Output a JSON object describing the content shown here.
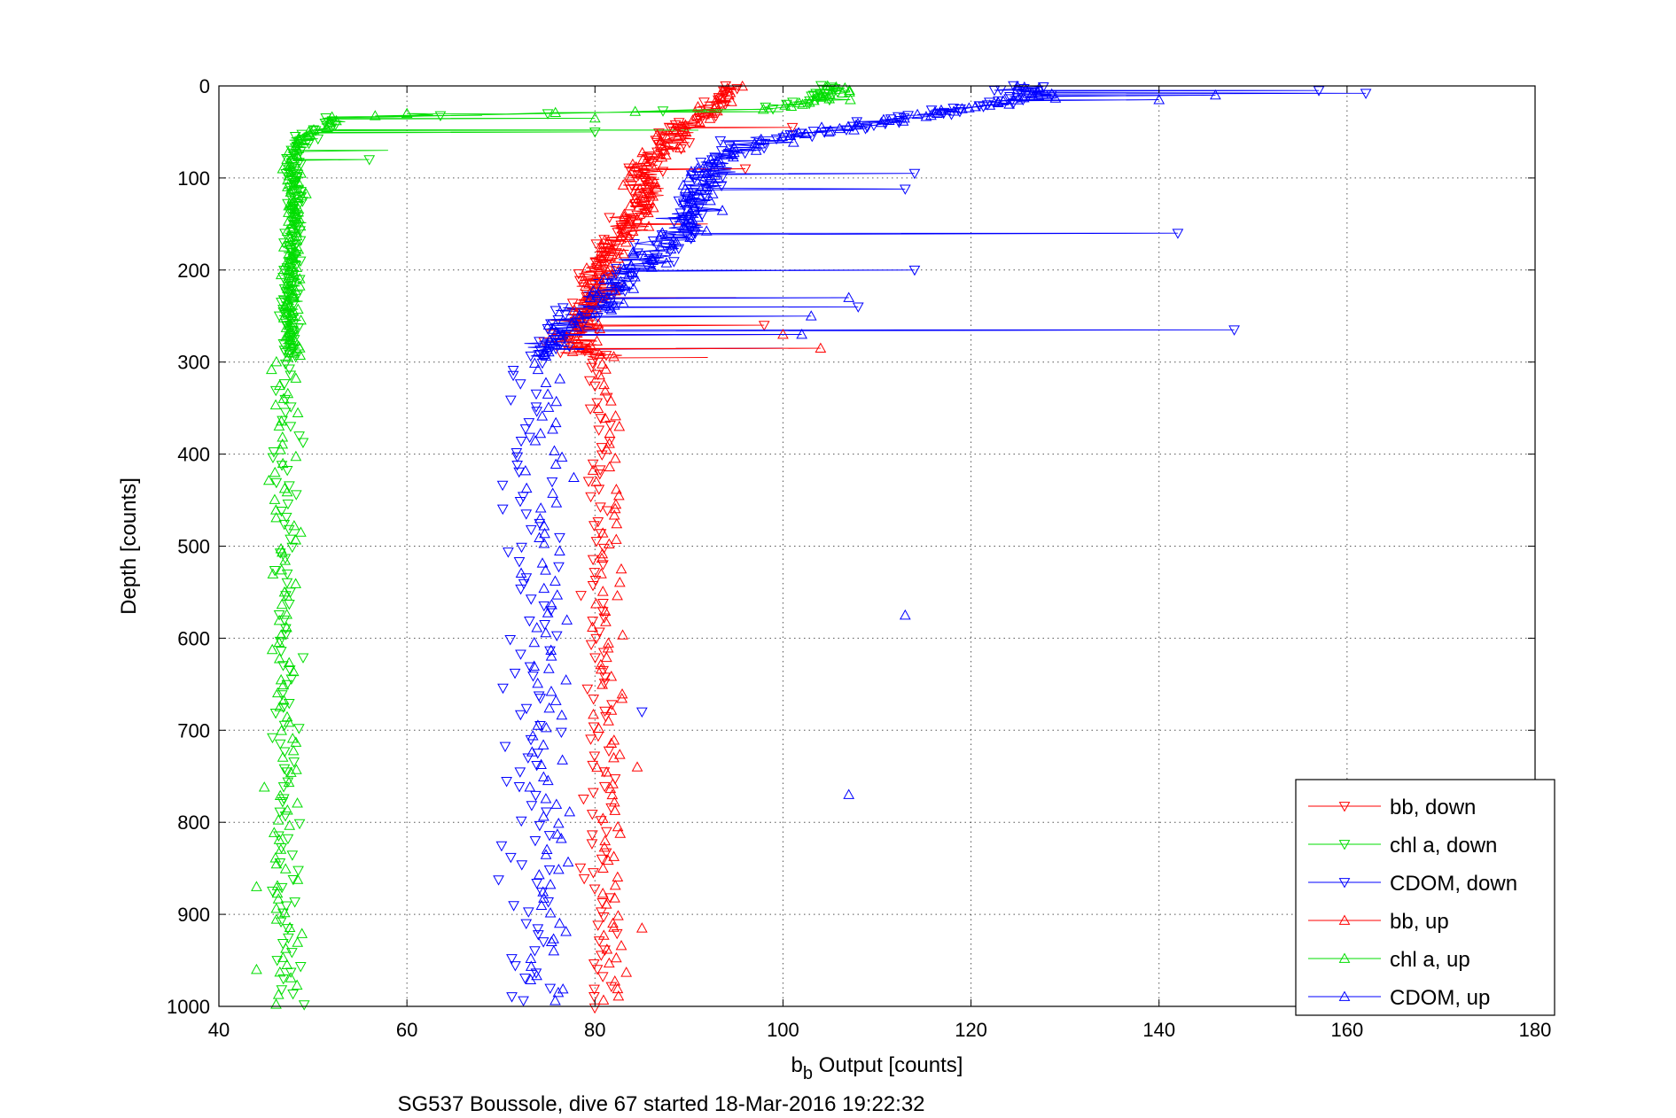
{
  "chart_data": {
    "type": "scatter",
    "xlabel": "b",
    "xlabel_sub": "b",
    "xlabel_rest": " Output [counts]",
    "ylabel": "Depth [counts]",
    "caption": "SG537 Boussole, dive 67 started 18-Mar-2016 19:22:32",
    "xlim": [
      40,
      180
    ],
    "ylim": [
      0,
      1000
    ],
    "y_reversed": true,
    "grid": true,
    "x_ticks": [
      40,
      60,
      80,
      100,
      120,
      140,
      160,
      180
    ],
    "y_ticks": [
      0,
      100,
      200,
      300,
      400,
      500,
      600,
      700,
      800,
      900,
      1000
    ],
    "legend_position": "bottom-right",
    "series": [
      {
        "name": "bb, down",
        "color": "#ff0000",
        "marker": "triangle-down",
        "connected": true,
        "trace": [
          [
            0,
            94,
            1.5
          ],
          [
            20,
            93,
            2.5
          ],
          [
            40,
            90,
            3
          ],
          [
            60,
            88,
            3
          ],
          [
            80,
            86,
            3
          ],
          [
            100,
            85,
            3
          ],
          [
            120,
            86,
            3
          ],
          [
            140,
            84,
            3
          ],
          [
            160,
            83,
            3
          ],
          [
            180,
            81,
            3
          ],
          [
            200,
            80,
            3
          ],
          [
            220,
            80,
            3.5
          ],
          [
            240,
            79,
            3.5
          ],
          [
            260,
            78,
            3.5
          ],
          [
            280,
            78,
            4
          ],
          [
            295,
            80,
            4
          ]
        ],
        "spikes": [
          [
            45,
            101
          ],
          [
            90,
            96
          ],
          [
            150,
            92
          ],
          [
            260,
            98
          ],
          [
            295,
            92
          ]
        ],
        "sparse": [
          [
            300,
            320,
            80,
            1.2
          ],
          [
            320,
            1000,
            80.5,
            1.4
          ]
        ]
      },
      {
        "name": "chl a, down",
        "color": "#00dd00",
        "marker": "triangle-down",
        "connected": true,
        "trace": [
          [
            0,
            105,
            3
          ],
          [
            15,
            104,
            3
          ],
          [
            25,
            98,
            2
          ],
          [
            35,
            52,
            2
          ],
          [
            45,
            51,
            2
          ],
          [
            55,
            49,
            2.5
          ],
          [
            70,
            48,
            1.6
          ],
          [
            100,
            48,
            1.6
          ],
          [
            150,
            48,
            1.6
          ],
          [
            200,
            47.5,
            1.6
          ],
          [
            250,
            47.5,
            1.6
          ],
          [
            295,
            47.5,
            1.6
          ]
        ],
        "spikes": [
          [
            48,
            91
          ],
          [
            50,
            80
          ],
          [
            70,
            58
          ],
          [
            80,
            56
          ]
        ],
        "sparse": [
          [
            300,
            1000,
            47.2,
            1.4
          ]
        ]
      },
      {
        "name": "CDOM, down",
        "color": "#0000ff",
        "marker": "triangle-down",
        "connected": true,
        "trace": [
          [
            0,
            125,
            5
          ],
          [
            10,
            126,
            5
          ],
          [
            20,
            122,
            4
          ],
          [
            40,
            110,
            4
          ],
          [
            60,
            97,
            5
          ],
          [
            80,
            93,
            4
          ],
          [
            100,
            92,
            4
          ],
          [
            120,
            91,
            4
          ],
          [
            140,
            90,
            4
          ],
          [
            160,
            89,
            4
          ],
          [
            180,
            86,
            4
          ],
          [
            200,
            84,
            4
          ],
          [
            220,
            82,
            4
          ],
          [
            240,
            80,
            4
          ],
          [
            260,
            77,
            4
          ],
          [
            280,
            75,
            3.5
          ],
          [
            295,
            74,
            3
          ]
        ],
        "spikes": [
          [
            5,
            157
          ],
          [
            8,
            162
          ],
          [
            95,
            114
          ],
          [
            112,
            113
          ],
          [
            160,
            142
          ],
          [
            200,
            114
          ],
          [
            265,
            148
          ],
          [
            285,
            100
          ],
          [
            240,
            108
          ]
        ],
        "sparse": [
          [
            300,
            1000,
            73,
            2.6
          ]
        ],
        "outliers": [
          [
            680,
            85
          ]
        ]
      },
      {
        "name": "bb, up",
        "color": "#ff0000",
        "marker": "triangle-up",
        "connected": true,
        "trace": [
          [
            0,
            95,
            1.5
          ],
          [
            20,
            93,
            2.5
          ],
          [
            40,
            90,
            3
          ],
          [
            60,
            88,
            3
          ],
          [
            80,
            86,
            3
          ],
          [
            100,
            85,
            3
          ],
          [
            120,
            86,
            3
          ],
          [
            140,
            84,
            3
          ],
          [
            160,
            83,
            3
          ],
          [
            180,
            82,
            3
          ],
          [
            200,
            80,
            3
          ],
          [
            220,
            80,
            3.5
          ],
          [
            240,
            79,
            3.5
          ],
          [
            260,
            79,
            3.5
          ],
          [
            280,
            78,
            4
          ],
          [
            295,
            80,
            4
          ]
        ],
        "spikes": [
          [
            285,
            104
          ],
          [
            270,
            100
          ],
          [
            230,
            95
          ]
        ],
        "sparse": [
          [
            300,
            1000,
            81.5,
            1.5
          ]
        ],
        "outliers": [
          [
            915,
            85
          ],
          [
            740,
            84.5
          ]
        ]
      },
      {
        "name": "chl a, up",
        "color": "#00dd00",
        "marker": "triangle-up",
        "connected": true,
        "trace": [
          [
            0,
            106,
            3
          ],
          [
            15,
            105,
            3
          ],
          [
            25,
            98,
            2
          ],
          [
            33,
            53,
            2
          ],
          [
            45,
            51,
            2
          ],
          [
            55,
            49,
            2.5
          ],
          [
            70,
            48,
            1.6
          ],
          [
            100,
            48,
            1.6
          ],
          [
            150,
            48,
            1.6
          ],
          [
            200,
            47.5,
            1.6
          ],
          [
            250,
            47.5,
            1.6
          ],
          [
            295,
            47.5,
            1.6
          ]
        ],
        "spikes": [
          [
            28,
            100
          ],
          [
            30,
            60
          ],
          [
            32,
            68
          ],
          [
            35,
            80
          ]
        ],
        "sparse": [
          [
            300,
            1000,
            47,
            1.5
          ]
        ],
        "outliers": [
          [
            870,
            44
          ],
          [
            960,
            44
          ]
        ]
      },
      {
        "name": "CDOM, up",
        "color": "#0000ff",
        "marker": "triangle-up",
        "connected": true,
        "trace": [
          [
            0,
            126,
            5
          ],
          [
            10,
            127,
            5
          ],
          [
            20,
            123,
            4
          ],
          [
            40,
            110,
            4
          ],
          [
            60,
            97,
            5
          ],
          [
            80,
            93,
            4
          ],
          [
            100,
            92,
            4
          ],
          [
            120,
            91,
            4
          ],
          [
            140,
            90,
            4
          ],
          [
            160,
            89,
            4
          ],
          [
            180,
            86,
            4
          ],
          [
            200,
            84,
            4
          ],
          [
            220,
            82,
            4
          ],
          [
            240,
            80,
            4
          ],
          [
            260,
            77,
            4
          ],
          [
            280,
            75,
            3.5
          ],
          [
            295,
            74,
            3
          ]
        ],
        "spikes": [
          [
            10,
            146
          ],
          [
            15,
            140
          ],
          [
            230,
            107
          ],
          [
            250,
            103
          ],
          [
            270,
            102
          ]
        ],
        "sparse": [
          [
            300,
            1000,
            75,
            2.6
          ]
        ],
        "outliers": [
          [
            575,
            113
          ],
          [
            770,
            107
          ]
        ]
      }
    ]
  }
}
